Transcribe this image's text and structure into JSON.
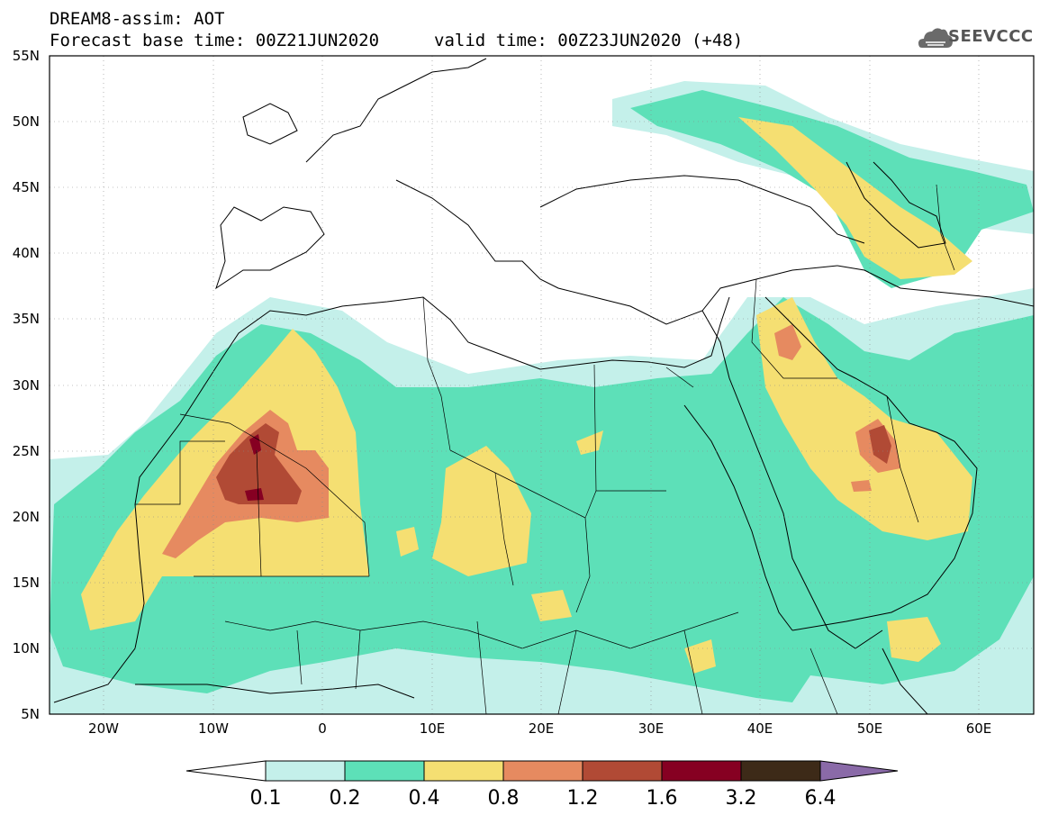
{
  "header": {
    "title": "DREAM8-assim: AOT",
    "base_time": "Forecast base time: 00Z21JUN2020",
    "valid_time": "valid time: 00Z23JUN2020 (+48)"
  },
  "logo": {
    "text": "SEEVCCC",
    "icon": "cloud-icon"
  },
  "map": {
    "lon_range": [
      -25,
      65
    ],
    "lat_range": [
      5,
      55
    ],
    "lat_labels": [
      "5N",
      "10N",
      "15N",
      "20N",
      "25N",
      "30N",
      "35N",
      "40N",
      "45N",
      "50N",
      "55N"
    ],
    "lon_labels": [
      "20W",
      "10W",
      "0",
      "10E",
      "20E",
      "30E",
      "40E",
      "50E",
      "60E"
    ],
    "grid": "dotted"
  },
  "colorbar": {
    "colors": [
      "#ffffff",
      "#c4f0ea",
      "#5de0b8",
      "#f5df72",
      "#e68a60",
      "#b14a35",
      "#860022",
      "#3d2a18",
      "#8a6aa8"
    ],
    "levels": [
      "0.1",
      "0.2",
      "0.4",
      "0.8",
      "1.2",
      "1.6",
      "3.2",
      "6.4"
    ]
  }
}
